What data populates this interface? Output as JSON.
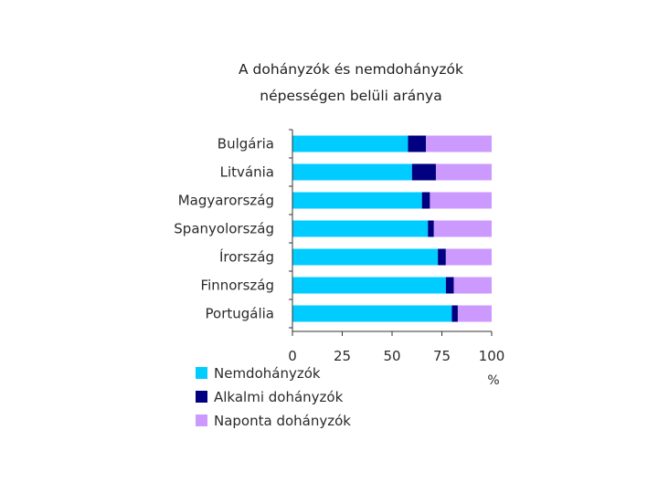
{
  "chart_data": {
    "type": "bar",
    "orientation": "horizontal",
    "stacked": true,
    "title": [
      "A dohányzók és nemdohányzók",
      "népességen belüli aránya"
    ],
    "categories": [
      "Bulgária",
      "Litvánia",
      "Magyarország",
      "Spanyolország",
      "Írország",
      "Finnország",
      "Portugália"
    ],
    "series": [
      {
        "name": "Nemdohányzók",
        "color": "#00ccff",
        "values": [
          58,
          60,
          65,
          68,
          73,
          77,
          80
        ]
      },
      {
        "name": "Alkalmi dohányzók",
        "color": "#000080",
        "values": [
          9,
          12,
          4,
          3,
          4,
          4,
          3
        ]
      },
      {
        "name": "Naponta dohányzók",
        "color": "#cc99ff",
        "values": [
          33,
          28,
          31,
          29,
          23,
          19,
          17
        ]
      }
    ],
    "xticks": [
      "0",
      "25",
      "50",
      "75",
      "100"
    ],
    "xlim": [
      0,
      100
    ],
    "xunit": "%",
    "grid": false,
    "legend_position": "bottom"
  }
}
